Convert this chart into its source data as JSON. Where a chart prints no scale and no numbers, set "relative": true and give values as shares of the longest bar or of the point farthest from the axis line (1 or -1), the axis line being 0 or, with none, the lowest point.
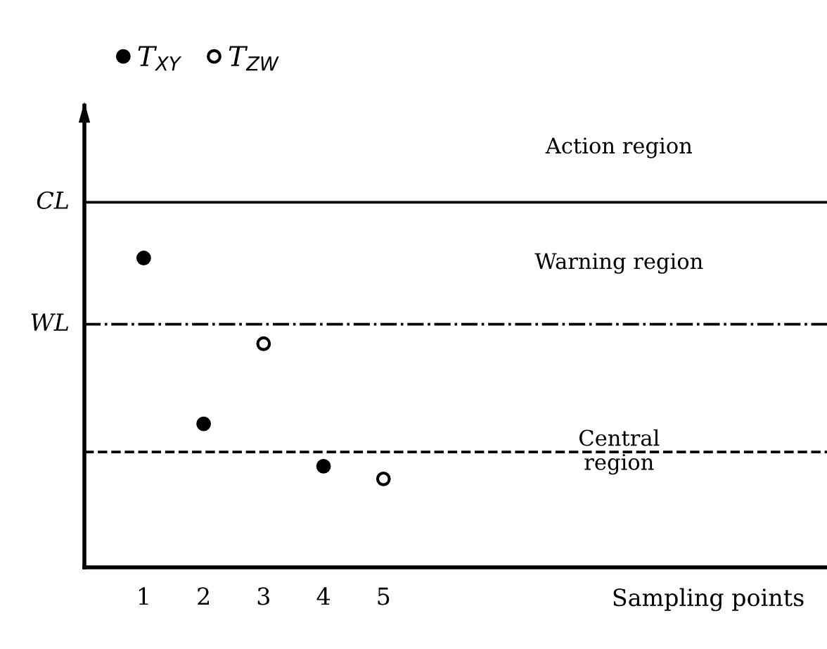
{
  "chart_data": {
    "type": "scatter",
    "relative": true,
    "categories": [
      "1",
      "2",
      "3",
      "4",
      "5"
    ],
    "series": [
      {
        "name": "T$_{XY}$",
        "color": "#000000",
        "marker": "circle",
        "values": [
          1,
          0.464,
          null,
          0.327,
          null
        ]
      },
      {
        "name": "T$_{ZW}$",
        "color": "#000000",
        "marker": "open circle",
        "values": [
          null,
          null,
          0.723,
          null,
          0.286
        ]
      }
    ],
    "ref_lines": [
      {
        "axis": "y",
        "value": 1.18,
        "label": "CL",
        "color": "#000000",
        "line_style": "solid"
      },
      {
        "axis": "y",
        "value": 0.786,
        "label": "WL",
        "color": "#000000",
        "line_style": "dashdot"
      },
      {
        "axis": "y",
        "value": 0.373,
        "label": null,
        "color": "#000000",
        "line_style": "dashed"
      }
    ],
    "annotations": [
      "Action region",
      "Warning region",
      "Central\nregion",
      "Sampling points"
    ],
    "legend": "top",
    "grid": false
  }
}
